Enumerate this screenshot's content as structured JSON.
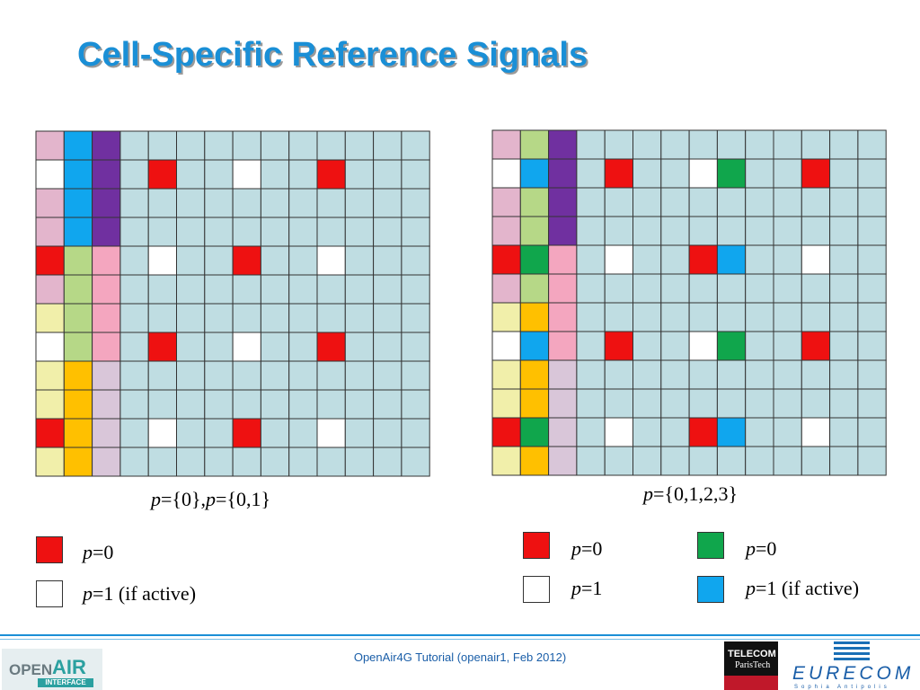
{
  "title": "Cell-Specific Reference Signals",
  "colors": {
    "cell": "#bfdde2",
    "red": "#ee1111",
    "white": "#ffffff",
    "green": "#10a64c",
    "blue": "#10a6ee",
    "pink": "#e3b5cc",
    "purple": "#7030a0",
    "lightgreen": "#b6d887",
    "lightpink": "#f4a6bf",
    "yellow": "#f1efaa",
    "orange": "#ffc000",
    "lavender": "#d9c6d9"
  },
  "grid_left": {
    "rows": [
      [
        "pink",
        "blue",
        "purple",
        "cell",
        "cell",
        "cell",
        "cell",
        "cell",
        "cell",
        "cell",
        "cell",
        "cell",
        "cell",
        "cell"
      ],
      [
        "white",
        "blue",
        "purple",
        "cell",
        "red",
        "cell",
        "cell",
        "white",
        "cell",
        "cell",
        "red",
        "cell",
        "cell",
        "cell"
      ],
      [
        "pink",
        "blue",
        "purple",
        "cell",
        "cell",
        "cell",
        "cell",
        "cell",
        "cell",
        "cell",
        "cell",
        "cell",
        "cell",
        "cell"
      ],
      [
        "pink",
        "blue",
        "purple",
        "cell",
        "cell",
        "cell",
        "cell",
        "cell",
        "cell",
        "cell",
        "cell",
        "cell",
        "cell",
        "cell"
      ],
      [
        "red",
        "lightgreen",
        "lightpink",
        "cell",
        "white",
        "cell",
        "cell",
        "red",
        "cell",
        "cell",
        "white",
        "cell",
        "cell",
        "cell"
      ],
      [
        "pink",
        "lightgreen",
        "lightpink",
        "cell",
        "cell",
        "cell",
        "cell",
        "cell",
        "cell",
        "cell",
        "cell",
        "cell",
        "cell",
        "cell"
      ],
      [
        "yellow",
        "lightgreen",
        "lightpink",
        "cell",
        "cell",
        "cell",
        "cell",
        "cell",
        "cell",
        "cell",
        "cell",
        "cell",
        "cell",
        "cell"
      ],
      [
        "white",
        "lightgreen",
        "lightpink",
        "cell",
        "red",
        "cell",
        "cell",
        "white",
        "cell",
        "cell",
        "red",
        "cell",
        "cell",
        "cell"
      ],
      [
        "yellow",
        "orange",
        "lavender",
        "cell",
        "cell",
        "cell",
        "cell",
        "cell",
        "cell",
        "cell",
        "cell",
        "cell",
        "cell",
        "cell"
      ],
      [
        "yellow",
        "orange",
        "lavender",
        "cell",
        "cell",
        "cell",
        "cell",
        "cell",
        "cell",
        "cell",
        "cell",
        "cell",
        "cell",
        "cell"
      ],
      [
        "red",
        "orange",
        "lavender",
        "cell",
        "white",
        "cell",
        "cell",
        "red",
        "cell",
        "cell",
        "white",
        "cell",
        "cell",
        "cell"
      ],
      [
        "yellow",
        "orange",
        "lavender",
        "cell",
        "cell",
        "cell",
        "cell",
        "cell",
        "cell",
        "cell",
        "cell",
        "cell",
        "cell",
        "cell"
      ]
    ],
    "caption_p1": "p",
    "caption_v1": "={0},",
    "caption_p2": "p",
    "caption_v2": "={0,1}"
  },
  "grid_right": {
    "rows": [
      [
        "pink",
        "lightgreen",
        "purple",
        "cell",
        "cell",
        "cell",
        "cell",
        "cell",
        "cell",
        "cell",
        "cell",
        "cell",
        "cell",
        "cell"
      ],
      [
        "white",
        "blue",
        "purple",
        "cell",
        "red",
        "cell",
        "cell",
        "white",
        "green",
        "cell",
        "cell",
        "red",
        "cell",
        "cell"
      ],
      [
        "pink",
        "lightgreen",
        "purple",
        "cell",
        "cell",
        "cell",
        "cell",
        "cell",
        "cell",
        "cell",
        "cell",
        "cell",
        "cell",
        "cell"
      ],
      [
        "pink",
        "lightgreen",
        "purple",
        "cell",
        "cell",
        "cell",
        "cell",
        "cell",
        "cell",
        "cell",
        "cell",
        "cell",
        "cell",
        "cell"
      ],
      [
        "red",
        "green",
        "lightpink",
        "cell",
        "white",
        "cell",
        "cell",
        "red",
        "blue",
        "cell",
        "cell",
        "white",
        "cell",
        "cell"
      ],
      [
        "pink",
        "lightgreen",
        "lightpink",
        "cell",
        "cell",
        "cell",
        "cell",
        "cell",
        "cell",
        "cell",
        "cell",
        "cell",
        "cell",
        "cell"
      ],
      [
        "yellow",
        "orange",
        "lightpink",
        "cell",
        "cell",
        "cell",
        "cell",
        "cell",
        "cell",
        "cell",
        "cell",
        "cell",
        "cell",
        "cell"
      ],
      [
        "white",
        "blue",
        "lightpink",
        "cell",
        "red",
        "cell",
        "cell",
        "white",
        "green",
        "cell",
        "cell",
        "red",
        "cell",
        "cell"
      ],
      [
        "yellow",
        "orange",
        "lavender",
        "cell",
        "cell",
        "cell",
        "cell",
        "cell",
        "cell",
        "cell",
        "cell",
        "cell",
        "cell",
        "cell"
      ],
      [
        "yellow",
        "orange",
        "lavender",
        "cell",
        "cell",
        "cell",
        "cell",
        "cell",
        "cell",
        "cell",
        "cell",
        "cell",
        "cell",
        "cell"
      ],
      [
        "red",
        "green",
        "lavender",
        "cell",
        "white",
        "cell",
        "cell",
        "red",
        "blue",
        "cell",
        "cell",
        "white",
        "cell",
        "cell"
      ],
      [
        "yellow",
        "orange",
        "lavender",
        "cell",
        "cell",
        "cell",
        "cell",
        "cell",
        "cell",
        "cell",
        "cell",
        "cell",
        "cell",
        "cell"
      ]
    ],
    "caption_p": "p",
    "caption_v": "={0,1,2,3}"
  },
  "legend_left": [
    {
      "color": "red",
      "p": "p",
      "text": "=0"
    },
    {
      "color": "white",
      "p": "p",
      "text": "=1 (if active)"
    }
  ],
  "legend_right": [
    {
      "color": "red",
      "p": "p",
      "text": "=0"
    },
    {
      "color": "white",
      "p": "p",
      "text": "=1"
    },
    {
      "color": "green",
      "p": "p",
      "text": "=0"
    },
    {
      "color": "blue",
      "p": "p",
      "text": "=1 (if active)"
    }
  ],
  "footer": "OpenAir4G Tutorial (openair1, Feb 2012)",
  "logos": {
    "oai_open": "OPEN",
    "oai_air": "AIR",
    "oai_interface": "INTERFACE",
    "telecom_line1": "TELECOM",
    "telecom_line2": "ParisTech",
    "eurecom": "EURECOM",
    "eurecom_sub": "Sophia Antipolis"
  }
}
